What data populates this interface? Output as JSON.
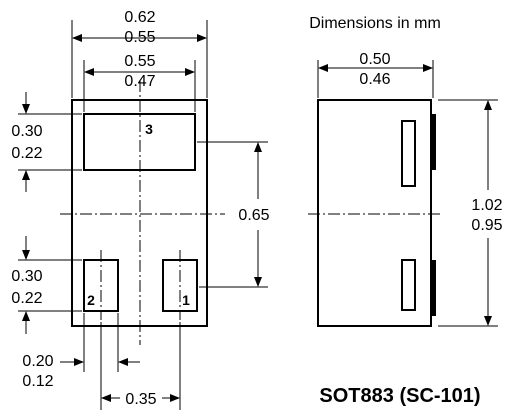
{
  "note": "Dimensions in mm",
  "title": "SOT883 (SC-101)",
  "top_view": {
    "overall_width": {
      "max": "0.62",
      "min": "0.55"
    },
    "pad_span": {
      "max": "0.55",
      "min": "0.47"
    },
    "pad3_height": {
      "max": "0.30",
      "min": "0.22"
    },
    "pad_height": {
      "max": "0.30",
      "min": "0.22"
    },
    "pitch_vertical": "0.65",
    "pad_width": {
      "max": "0.20",
      "min": "0.12"
    },
    "pitch_horizontal": "0.35",
    "pins": [
      "1",
      "2",
      "3"
    ]
  },
  "side_view": {
    "width": {
      "max": "0.50",
      "min": "0.46"
    },
    "length": {
      "max": "1.02",
      "min": "0.95"
    }
  }
}
